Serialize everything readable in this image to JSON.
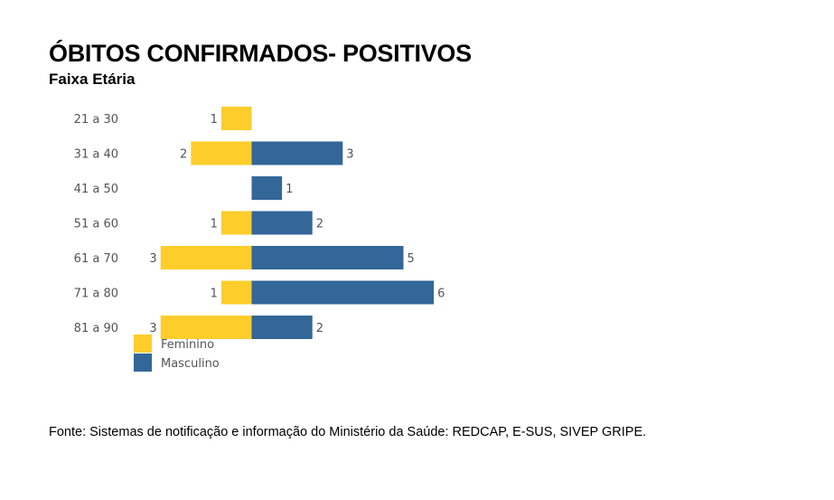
{
  "title": "ÓBITOS CONFIRMADOS- POSITIVOS",
  "subtitle": "Faixa Etária",
  "source": "Fonte:  Sistemas de notificação e informação do Ministério da Saúde: REDCAP, E-SUS, SIVEP GRIPE.",
  "colors": {
    "feminino": "#FFCD2B",
    "masculino": "#336699"
  },
  "chart_data": {
    "type": "bar",
    "orientation": "horizontal-diverging",
    "title": "ÓBITOS CONFIRMADOS- POSITIVOS",
    "subtitle": "Faixa Etária",
    "categories": [
      "21 a 30",
      "31 a 40",
      "41 a 50",
      "51 a 60",
      "61 a 70",
      "71 a 80",
      "81 a 90"
    ],
    "series": [
      {
        "name": "Feminino",
        "color": "#FFCD2B",
        "values": [
          1,
          2,
          null,
          1,
          3,
          1,
          3
        ]
      },
      {
        "name": "Masculino",
        "color": "#336699",
        "values": [
          null,
          3,
          1,
          2,
          5,
          6,
          2
        ]
      }
    ],
    "legend": [
      "Feminino",
      "Masculino"
    ],
    "legend_position": "bottom-left",
    "grid": false
  }
}
